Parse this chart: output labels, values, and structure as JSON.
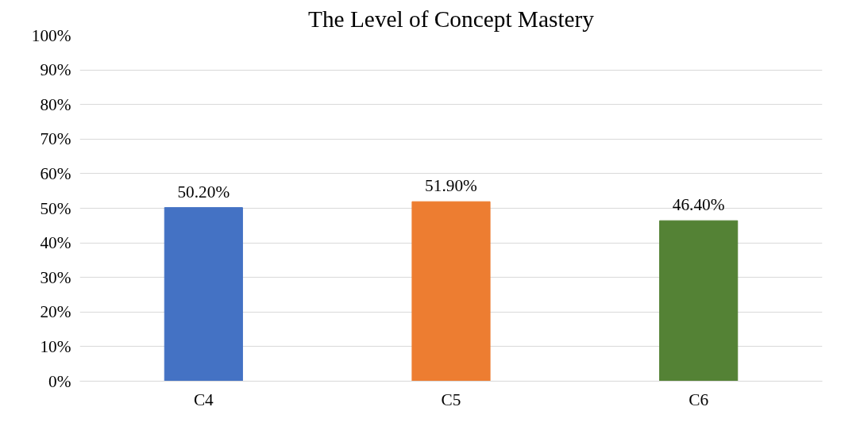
{
  "chart_data": {
    "type": "bar",
    "title": "The Level of Concept Mastery",
    "categories": [
      "C4",
      "C5",
      "C6"
    ],
    "values": [
      50.2,
      51.9,
      46.4
    ],
    "colors": [
      "#4472c4",
      "#ed7d31",
      "#548235"
    ],
    "value_labels": [
      "50.20%",
      "51.90%",
      "46.40%"
    ],
    "ylim": [
      0,
      100
    ],
    "yticks": [
      {
        "value": 0,
        "label": "0%"
      },
      {
        "value": 10,
        "label": "10%"
      },
      {
        "value": 20,
        "label": "20%"
      },
      {
        "value": 30,
        "label": "30%"
      },
      {
        "value": 40,
        "label": "40%"
      },
      {
        "value": 50,
        "label": "50%"
      },
      {
        "value": 60,
        "label": "60%"
      },
      {
        "value": 70,
        "label": "70%"
      },
      {
        "value": 80,
        "label": "80%"
      },
      {
        "value": 90,
        "label": "90%"
      },
      {
        "value": 100,
        "label": "100%"
      }
    ],
    "grid": "y"
  }
}
